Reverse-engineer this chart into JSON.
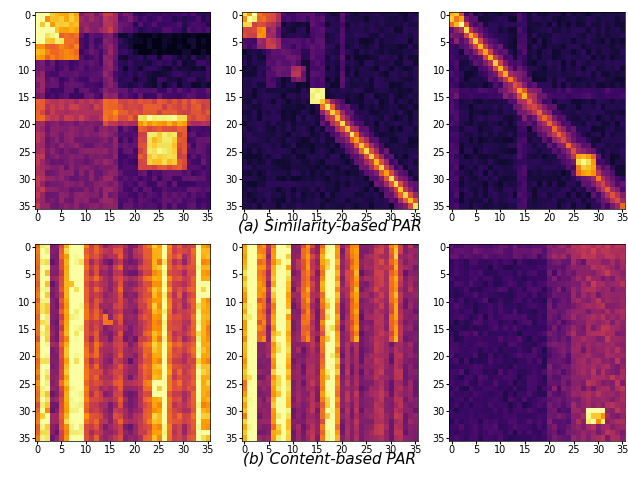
{
  "title_a": "(a) Similarity-based PAR",
  "title_b": "(b) Content-based PAR",
  "colormap": "inferno",
  "figsize": [
    6.28,
    4.82
  ],
  "dpi": 100,
  "n": 36,
  "tick_step": 5,
  "xlabel_fontsize": 7,
  "ylabel_fontsize": 7,
  "title_fontsize": 11
}
